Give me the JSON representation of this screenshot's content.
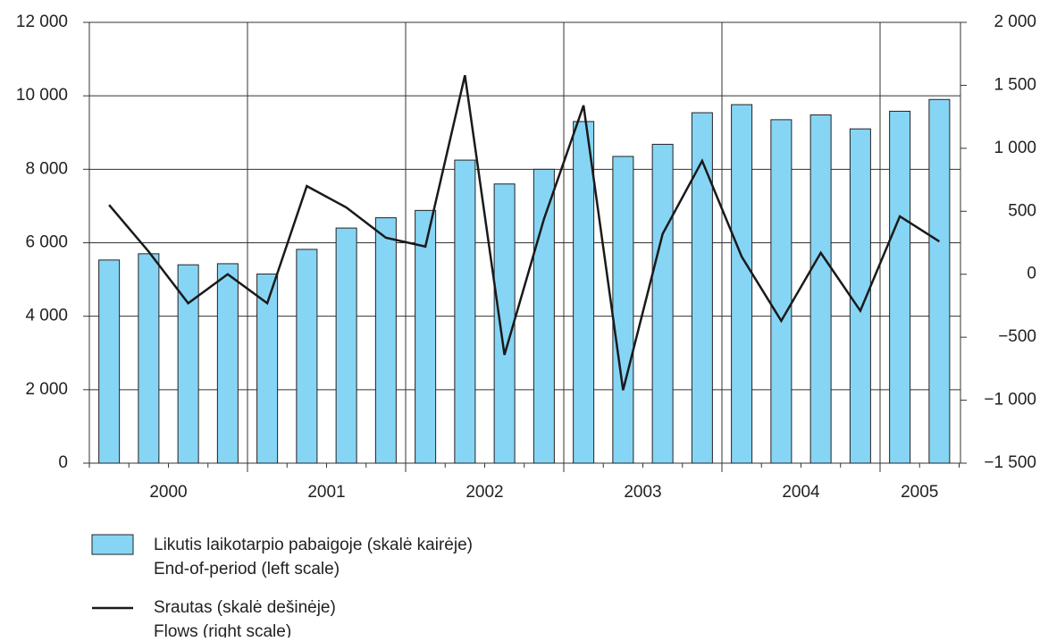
{
  "chart_data": {
    "type": "bar_line",
    "categories": [
      null,
      null,
      null,
      null,
      null,
      null,
      null,
      null,
      null,
      null,
      null,
      null,
      null,
      null,
      null,
      null,
      null,
      null,
      null,
      null,
      null,
      null
    ],
    "groups": [
      "2000",
      "2001",
      "2002",
      "2003",
      "2004",
      "2005"
    ],
    "series": [
      {
        "name": "Likutis laikotarpio pabaigoje (skalė kairėje)",
        "name_en": "End-of-period (left scale)",
        "type": "bar",
        "color": "#87d5f5",
        "values": [
          5530,
          5700,
          5400,
          5430,
          5150,
          5820,
          6400,
          6680,
          6880,
          8250,
          7600,
          8000,
          9300,
          8350,
          8680,
          9540,
          9760,
          9350,
          9480,
          9100,
          9580,
          9900
        ]
      },
      {
        "name": "Srautas (skalė dešinėje)",
        "name_en": "Flows (right scale)",
        "type": "line",
        "color": "#1a1a1a",
        "axis": "y2",
        "values": [
          550,
          180,
          -230,
          0,
          -230,
          700,
          530,
          290,
          220,
          1580,
          -640,
          440,
          1340,
          -920,
          320,
          900,
          140,
          -370,
          170,
          -290,
          460,
          260
        ]
      }
    ],
    "ylim": [
      0,
      12000
    ],
    "yticks": [
      0,
      {
        "value": 2000,
        "label": "2 000"
      },
      {
        "value": 4000,
        "label": "4 000"
      },
      {
        "value": 6000,
        "label": "6 000"
      },
      {
        "value": 8000,
        "label": "8 000"
      },
      {
        "value": 10000,
        "label": "10 000"
      },
      {
        "value": 12000,
        "label": "12 000"
      }
    ],
    "y2lim": [
      -1500,
      2000
    ],
    "y2ticks": [
      {
        "value": -1500,
        "label": "−1 500"
      },
      {
        "value": -1000,
        "label": "−1 000"
      },
      {
        "value": -500,
        "label": "−500"
      },
      0,
      500,
      {
        "value": 1000,
        "label": "1 000"
      },
      {
        "value": 1500,
        "label": "1 500"
      },
      {
        "value": 2000,
        "label": "2 000"
      }
    ],
    "grid": true
  }
}
